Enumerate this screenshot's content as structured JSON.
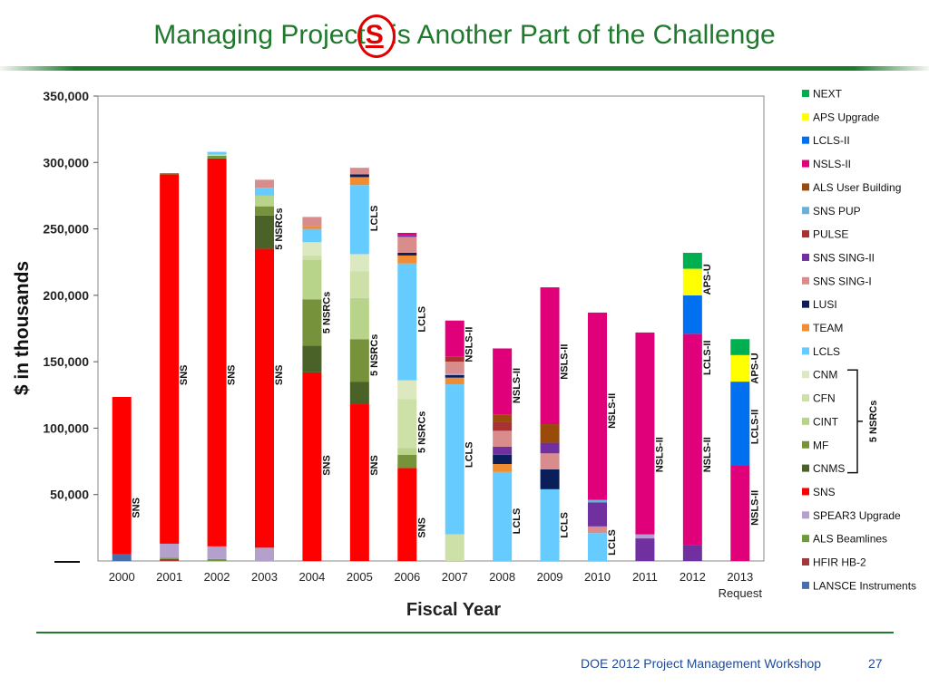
{
  "slide": {
    "title_before": "Managing Project",
    "title_s": "S",
    "title_after": " is Another Part of the Challenge",
    "footer": "DOE 2012 Project Management Workshop",
    "page_number": "27"
  },
  "chart_data": {
    "type": "bar",
    "stacked": true,
    "title": "",
    "xlabel": "Fiscal Year",
    "ylabel": "$ in thousands",
    "ylim": [
      0,
      350000
    ],
    "yticks": [
      "350,000",
      "300,000",
      "250,000",
      "200,000",
      "150,000",
      "100,000",
      "50,000"
    ],
    "grid": false,
    "legend_position": "right",
    "categories": [
      "2000",
      "2001",
      "2002",
      "2003",
      "2004",
      "2005",
      "2006",
      "2007",
      "2008",
      "2009",
      "2010",
      "2011",
      "2012",
      "2013 Request"
    ],
    "colors": {
      "NEXT": "#00b050",
      "APS Upgrade": "#ffff00",
      "LCLS-II": "#0070f0",
      "NSLS-II": "#e0007a",
      "ALS User Building": "#9a4a0a",
      "SNS PUP": "#6ab0d8",
      "PULSE": "#a83232",
      "SNS SING-II": "#7030a0",
      "SNS SING-I": "#d98c8c",
      "LUSI": "#0a1e5a",
      "TEAM": "#f08c32",
      "LCLS": "#66ccff",
      "CNM": "#dbe8c0",
      "CFN": "#cde0a8",
      "CINT": "#b8d48a",
      "MF": "#76933c",
      "CNMS": "#4a6128",
      "SNS": "#ff0000",
      "SPEAR3 Upgrade": "#b4a0cc",
      "ALS Beamlines": "#6e9a3a",
      "HFIR HB-2": "#a03a3a",
      "LANSCE Instruments": "#4a6ea8"
    },
    "legend": [
      "NEXT",
      "APS Upgrade",
      "LCLS-II",
      "NSLS-II",
      "ALS User Building",
      "SNS PUP",
      "PULSE",
      "SNS SING-II",
      "SNS SING-I",
      "LUSI",
      "TEAM",
      "LCLS",
      "CNM",
      "CFN",
      "CINT",
      "MF",
      "CNMS",
      "SNS",
      "SPEAR3 Upgrade",
      "ALS Beamlines",
      "HFIR HB-2",
      "LANSCE Instruments"
    ],
    "legend_bracket_label": "5 NSRCs",
    "stacks": [
      {
        "year": "2000",
        "segments": [
          [
            "LANSCE Instruments",
            5000
          ],
          [
            "SNS",
            118500
          ]
        ]
      },
      {
        "year": "2001",
        "segments": [
          [
            "HFIR HB-2",
            1500
          ],
          [
            "ALS Beamlines",
            1000
          ],
          [
            "SPEAR3 Upgrade",
            10500
          ],
          [
            "SNS",
            278000
          ],
          [
            "ALS Beamlines",
            1000
          ]
        ]
      },
      {
        "year": "2002",
        "segments": [
          [
            "ALS Beamlines",
            1500
          ],
          [
            "SPEAR3 Upgrade",
            9500
          ],
          [
            "SNS",
            292000
          ],
          [
            "ALS Beamlines",
            2000
          ],
          [
            "CFN",
            1000
          ],
          [
            "LCLS",
            2000
          ]
        ]
      },
      {
        "year": "2003",
        "segments": [
          [
            "SPEAR3 Upgrade",
            10000
          ],
          [
            "SNS",
            225000
          ],
          [
            "CNMS",
            25000
          ],
          [
            "MF",
            7000
          ],
          [
            "CINT",
            8000
          ],
          [
            "LCLS",
            6000
          ],
          [
            "SNS SING-I",
            6000
          ]
        ]
      },
      {
        "year": "2004",
        "segments": [
          [
            "SNS",
            142000
          ],
          [
            "CNMS",
            20000
          ],
          [
            "MF",
            35000
          ],
          [
            "CINT",
            30000
          ],
          [
            "CFN",
            3000
          ],
          [
            "CNM",
            10000
          ],
          [
            "LCLS",
            10000
          ],
          [
            "TEAM",
            2000
          ],
          [
            "SNS SING-I",
            7000
          ]
        ]
      },
      {
        "year": "2005",
        "segments": [
          [
            "SNS",
            118000
          ],
          [
            "CNMS",
            17000
          ],
          [
            "MF",
            32000
          ],
          [
            "CINT",
            31000
          ],
          [
            "CFN",
            20000
          ],
          [
            "CNM",
            13000
          ],
          [
            "LCLS",
            52000
          ],
          [
            "TEAM",
            6000
          ],
          [
            "LUSI",
            2000
          ],
          [
            "SNS SING-I",
            5000
          ]
        ]
      },
      {
        "year": "2006",
        "segments": [
          [
            "SNS",
            70000
          ],
          [
            "MF",
            10000
          ],
          [
            "CINT",
            5000
          ],
          [
            "CFN",
            37000
          ],
          [
            "CNM",
            14000
          ],
          [
            "LCLS",
            88000
          ],
          [
            "TEAM",
            6000
          ],
          [
            "LUSI",
            2000
          ],
          [
            "SNS SING-I",
            12000
          ],
          [
            "SNS SING-II",
            1500
          ],
          [
            "NSLS-II",
            1500
          ]
        ]
      },
      {
        "year": "2007",
        "segments": [
          [
            "CFN",
            20000
          ],
          [
            "LCLS",
            113000
          ],
          [
            "TEAM",
            5000
          ],
          [
            "LUSI",
            2000
          ],
          [
            "SPEAR3 Upgrade",
            1000
          ],
          [
            "SNS SING-I",
            9000
          ],
          [
            "PULSE",
            4000
          ],
          [
            "NSLS-II",
            27000
          ]
        ]
      },
      {
        "year": "2008",
        "segments": [
          [
            "LCLS",
            67000
          ],
          [
            "TEAM",
            6000
          ],
          [
            "LUSI",
            7000
          ],
          [
            "SNS SING-II",
            6000
          ],
          [
            "SNS SING-I",
            12000
          ],
          [
            "PULSE",
            7000
          ],
          [
            "ALS User Building",
            5000
          ],
          [
            "NSLS-II",
            50000
          ]
        ]
      },
      {
        "year": "2009",
        "segments": [
          [
            "LCLS",
            54000
          ],
          [
            "LUSI",
            15000
          ],
          [
            "SNS SING-I",
            12000
          ],
          [
            "SNS SING-II",
            8000
          ],
          [
            "ALS User Building",
            14000
          ],
          [
            "NSLS-II",
            103000
          ]
        ]
      },
      {
        "year": "2010",
        "segments": [
          [
            "LCLS",
            21000
          ],
          [
            "SNS SING-I",
            5000
          ],
          [
            "SNS SING-II",
            18000
          ],
          [
            "SNS PUP",
            2000
          ],
          [
            "NSLS-II",
            141000
          ]
        ]
      },
      {
        "year": "2011",
        "segments": [
          [
            "SNS SING-II",
            17000
          ],
          [
            "SPEAR3 Upgrade",
            3000
          ],
          [
            "NSLS-II",
            152000
          ]
        ]
      },
      {
        "year": "2012",
        "segments": [
          [
            "SNS SING-II",
            12000
          ],
          [
            "NSLS-II",
            159000
          ],
          [
            "LCLS-II",
            29000
          ],
          [
            "APS Upgrade",
            20000
          ],
          [
            "NEXT",
            12000
          ]
        ]
      },
      {
        "year": "2013 Request",
        "segments": [
          [
            "NSLS-II",
            72000
          ],
          [
            "LCLS-II",
            63000
          ],
          [
            "APS Upgrade",
            20000
          ],
          [
            "NEXT",
            12000
          ]
        ]
      }
    ],
    "annotations": [
      {
        "year": "2000",
        "text": "SNS",
        "at": 40000
      },
      {
        "year": "2001",
        "text": "SNS",
        "at": 140000
      },
      {
        "year": "2002",
        "text": "SNS",
        "at": 140000
      },
      {
        "year": "2003",
        "text": "SNS",
        "at": 140000
      },
      {
        "year": "2003",
        "text": "5 NSRCs",
        "at": 250000,
        "side": "right"
      },
      {
        "year": "2004",
        "text": "SNS",
        "at": 72000
      },
      {
        "year": "2004",
        "text": "5 NSRCs",
        "at": 187000,
        "side": "right"
      },
      {
        "year": "2005",
        "text": "SNS",
        "at": 72000
      },
      {
        "year": "2005",
        "text": "5 NSRCs",
        "at": 155000,
        "side": "right"
      },
      {
        "year": "2005",
        "text": "LCLS",
        "at": 258000,
        "side": "right"
      },
      {
        "year": "2006",
        "text": "SNS",
        "at": 25000,
        "side": "right"
      },
      {
        "year": "2006",
        "text": "5 NSRCs",
        "at": 97000,
        "side": "right"
      },
      {
        "year": "2006",
        "text": "LCLS",
        "at": 182000,
        "side": "right"
      },
      {
        "year": "2007",
        "text": "LCLS",
        "at": 80000,
        "side": "right"
      },
      {
        "year": "2007",
        "text": "NSLS-II",
        "at": 163000,
        "side": "right"
      },
      {
        "year": "2008",
        "text": "LCLS",
        "at": 30000,
        "side": "right"
      },
      {
        "year": "2008",
        "text": "NSLS-II",
        "at": 132000,
        "side": "right"
      },
      {
        "year": "2009",
        "text": "LCLS",
        "at": 27000,
        "side": "right"
      },
      {
        "year": "2009",
        "text": "NSLS-II",
        "at": 150000,
        "side": "right"
      },
      {
        "year": "2010",
        "text": "LCLS",
        "at": 14000,
        "side": "right"
      },
      {
        "year": "2010",
        "text": "NSLS-II",
        "at": 113000,
        "side": "right"
      },
      {
        "year": "2011",
        "text": "NSLS-II",
        "at": 80000,
        "side": "right"
      },
      {
        "year": "2012",
        "text": "NSLS-II",
        "at": 80000,
        "side": "right"
      },
      {
        "year": "2012",
        "text": "LCLS-II",
        "at": 153000,
        "side": "right"
      },
      {
        "year": "2012",
        "text": "APS-U",
        "at": 212000,
        "side": "right"
      },
      {
        "year": "2013 Request",
        "text": "NSLS-II",
        "at": 40000,
        "side": "right"
      },
      {
        "year": "2013 Request",
        "text": "LCLS-II",
        "at": 101000,
        "side": "right"
      },
      {
        "year": "2013 Request",
        "text": "APS-U",
        "at": 145000,
        "side": "right"
      }
    ]
  }
}
